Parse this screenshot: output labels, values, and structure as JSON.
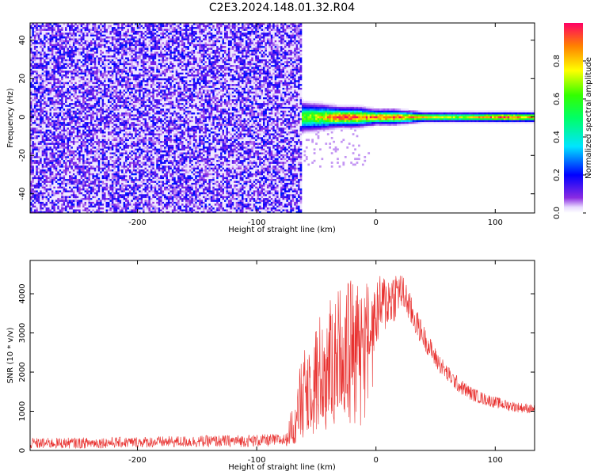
{
  "title": "C2E3.2024.148.01.32.R04",
  "chart_data": [
    {
      "type": "heatmap",
      "xlabel": "Height of straight line (km)",
      "ylabel": "Frequency (Hz)",
      "xlim": [
        -290,
        133
      ],
      "ylim": [
        -50,
        49
      ],
      "xticks": [
        -200,
        -100,
        0,
        100
      ],
      "yticks": [
        -40,
        -20,
        0,
        20,
        40
      ],
      "xtick_labels": [
        "-200",
        "-100",
        "0",
        "100"
      ],
      "ytick_labels": [
        "-40",
        "-20",
        "0",
        "20",
        "40"
      ],
      "noise_region_end_km": -62,
      "signal_band": {
        "center_freq_hz": 0,
        "segments": [
          {
            "x_km": -62,
            "halfwidth_hz": 6,
            "peak_amp": 0.6
          },
          {
            "x_km": -45,
            "halfwidth_hz": 5,
            "peak_amp": 0.75
          },
          {
            "x_km": -30,
            "halfwidth_hz": 4,
            "peak_amp": 0.95
          },
          {
            "x_km": -15,
            "halfwidth_hz": 4,
            "peak_amp": 0.9
          },
          {
            "x_km": 0,
            "halfwidth_hz": 3,
            "peak_amp": 0.9
          },
          {
            "x_km": 15,
            "halfwidth_hz": 3,
            "peak_amp": 0.95
          },
          {
            "x_km": 40,
            "halfwidth_hz": 2,
            "peak_amp": 0.75
          },
          {
            "x_km": 70,
            "halfwidth_hz": 2,
            "peak_amp": 0.7
          },
          {
            "x_km": 110,
            "halfwidth_hz": 2,
            "peak_amp": 0.95
          },
          {
            "x_km": 133,
            "halfwidth_hz": 2,
            "peak_amp": 0.8
          }
        ]
      },
      "colorbar": {
        "label": "Normalized spectral amplitude",
        "range": [
          0,
          1
        ],
        "ticks": [
          0.0,
          0.2,
          0.4,
          0.6,
          0.8
        ],
        "tick_labels": [
          "0.0",
          "0.2",
          "0.4",
          "0.6",
          "0.8"
        ]
      },
      "grid": false
    },
    {
      "type": "line",
      "xlabel": "Height of straight line (km)",
      "ylabel": "SNR (10 * v/v)",
      "xlim": [
        -290,
        133
      ],
      "ylim": [
        0,
        4850
      ],
      "xticks": [
        -200,
        -100,
        0,
        100
      ],
      "yticks": [
        0,
        1000,
        2000,
        3000,
        4000
      ],
      "xtick_labels": [
        "-200",
        "-100",
        "0",
        "100"
      ],
      "ytick_labels": [
        "0",
        "1000",
        "2000",
        "3000",
        "4000"
      ],
      "color": "#e8302e",
      "series": [
        {
          "x": [
            -290,
            -250,
            -200,
            -150,
            -100,
            -75,
            -65,
            -55,
            -45,
            -35,
            -25,
            -15,
            -5,
            5,
            15,
            20,
            25,
            30,
            40,
            50,
            60,
            70,
            80,
            90,
            100,
            110,
            120,
            133
          ],
          "y": [
            180,
            190,
            210,
            230,
            250,
            270,
            1100,
            1800,
            2100,
            2500,
            2800,
            3100,
            3300,
            3700,
            3950,
            4100,
            3900,
            3500,
            2900,
            2350,
            1950,
            1650,
            1450,
            1320,
            1230,
            1150,
            1100,
            1050
          ],
          "y_spread": [
            140,
            140,
            140,
            150,
            160,
            160,
            900,
            1300,
            1500,
            1600,
            1500,
            1300,
            1000,
            800,
            700,
            500,
            450,
            400,
            300,
            260,
            220,
            200,
            180,
            160,
            150,
            140,
            130,
            120
          ]
        }
      ],
      "grid": false
    }
  ]
}
